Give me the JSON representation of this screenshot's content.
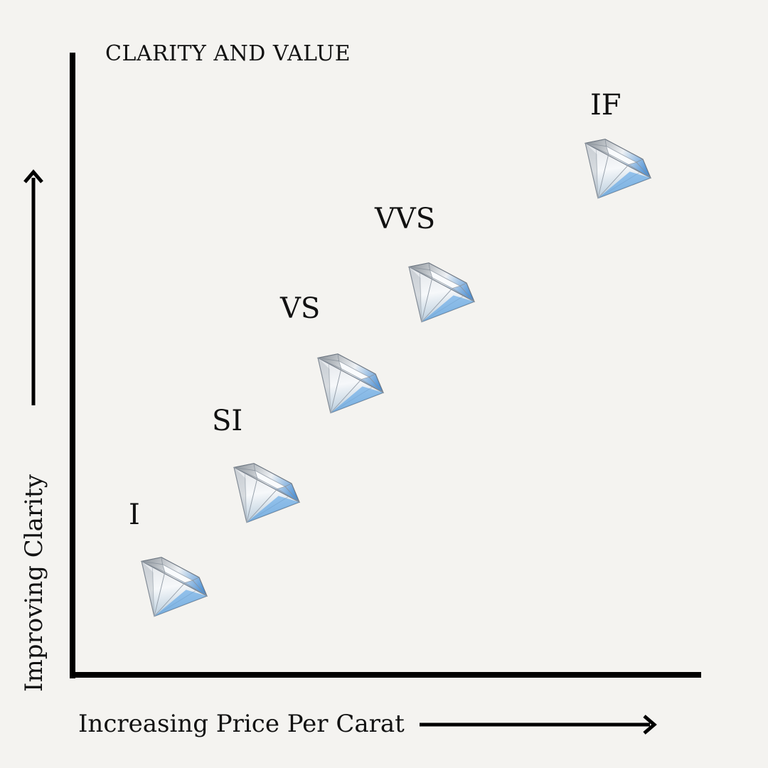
{
  "title": "CLARITY AND VALUE",
  "axes": {
    "y_label": "Improving Clarity",
    "x_label": "Increasing Price Per Carat"
  },
  "grades": [
    {
      "label": "I",
      "rank": 1
    },
    {
      "label": "SI",
      "rank": 2
    },
    {
      "label": "VS",
      "rank": 3
    },
    {
      "label": "VVS",
      "rank": 4
    },
    {
      "label": "IF",
      "rank": 5
    }
  ],
  "colors": {
    "background": "#f4f3f0",
    "axis": "#000000",
    "diamond_blue": "#5aa6e6"
  },
  "icons": {
    "diamond": "diamond-icon",
    "arrow_up": "arrow-up-icon",
    "arrow_right": "arrow-right-icon"
  }
}
